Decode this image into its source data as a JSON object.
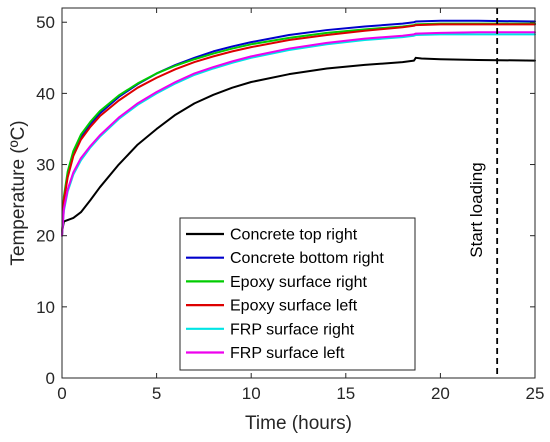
{
  "chart_data": {
    "type": "line",
    "xlabel": "Time (hours)",
    "ylabel": "Temperature (ºC)",
    "xlim": [
      0,
      25
    ],
    "ylim": [
      0,
      52
    ],
    "xticks": [
      0,
      5,
      10,
      15,
      20,
      25
    ],
    "yticks": [
      0,
      10,
      20,
      30,
      40,
      50
    ],
    "grid": false,
    "legend_position": "bottom-center",
    "annotation": {
      "text": "Start loading",
      "x": 23,
      "line_style": "dashed",
      "color": "#000000"
    },
    "series": [
      {
        "name": "Concrete top right",
        "color": "#000000",
        "x": [
          0,
          0.1,
          0.3,
          0.6,
          1,
          1.5,
          2,
          3,
          4,
          5,
          6,
          7,
          8,
          9,
          10,
          12,
          14,
          16,
          18,
          18.6,
          18.7,
          19,
          20,
          22,
          25
        ],
        "y": [
          20.5,
          22,
          22.2,
          22.5,
          23.3,
          25,
          26.8,
          30,
          32.8,
          35,
          37,
          38.6,
          39.8,
          40.8,
          41.6,
          42.7,
          43.5,
          44,
          44.4,
          44.6,
          45,
          44.9,
          44.8,
          44.7,
          44.6
        ]
      },
      {
        "name": "Concrete bottom right",
        "color": "#0000cc",
        "x": [
          0,
          0.1,
          0.3,
          0.6,
          1,
          1.5,
          2,
          3,
          4,
          5,
          6,
          7,
          8,
          9,
          10,
          12,
          14,
          16,
          18,
          18.6,
          18.7,
          20,
          22,
          25
        ],
        "y": [
          20,
          25,
          28.5,
          31.5,
          33.8,
          35.7,
          37.2,
          39.5,
          41.3,
          42.8,
          44,
          45,
          45.9,
          46.6,
          47.2,
          48.2,
          48.9,
          49.4,
          49.8,
          50,
          50.1,
          50.2,
          50.2,
          50.1
        ]
      },
      {
        "name": "Epoxy surface right",
        "color": "#00cc00",
        "x": [
          0,
          0.1,
          0.3,
          0.6,
          1,
          1.5,
          2,
          3,
          4,
          5,
          6,
          7,
          8,
          9,
          10,
          12,
          14,
          16,
          18,
          18.6,
          18.7,
          20,
          22,
          25
        ],
        "y": [
          20,
          25.5,
          29,
          31.9,
          34.2,
          36,
          37.5,
          39.7,
          41.4,
          42.8,
          43.9,
          44.8,
          45.6,
          46.3,
          46.9,
          47.8,
          48.5,
          49,
          49.4,
          49.6,
          49.7,
          49.8,
          49.8,
          49.8
        ]
      },
      {
        "name": "Epoxy surface left",
        "color": "#dd0000",
        "x": [
          0,
          0.1,
          0.3,
          0.6,
          1,
          1.5,
          2,
          3,
          4,
          5,
          6,
          7,
          8,
          9,
          10,
          12,
          14,
          16,
          18,
          18.6,
          18.7,
          20,
          22,
          25
        ],
        "y": [
          20,
          25,
          28.2,
          31.2,
          33.5,
          35.3,
          36.8,
          39,
          40.8,
          42.2,
          43.4,
          44.4,
          45.2,
          45.9,
          46.5,
          47.5,
          48.2,
          48.8,
          49.3,
          49.5,
          49.6,
          49.7,
          49.7,
          49.7
        ]
      },
      {
        "name": "FRP surface right",
        "color": "#00e5e5",
        "x": [
          0,
          0.1,
          0.3,
          0.6,
          1,
          1.5,
          2,
          3,
          4,
          5,
          6,
          7,
          8,
          9,
          10,
          12,
          14,
          16,
          18,
          18.6,
          18.7,
          20,
          22,
          25
        ],
        "y": [
          20,
          23.5,
          26.2,
          28.6,
          30.6,
          32.4,
          33.9,
          36.4,
          38.4,
          40,
          41.4,
          42.6,
          43.5,
          44.3,
          45,
          46.1,
          46.9,
          47.5,
          47.9,
          48.1,
          48.2,
          48.3,
          48.3,
          48.3
        ]
      },
      {
        "name": "FRP surface left",
        "color": "#ee00ee",
        "x": [
          0,
          0.1,
          0.3,
          0.6,
          1,
          1.5,
          2,
          3,
          4,
          5,
          6,
          7,
          8,
          9,
          10,
          12,
          14,
          16,
          18,
          18.6,
          18.7,
          20,
          22,
          25
        ],
        "y": [
          20,
          23.8,
          26.5,
          28.9,
          30.9,
          32.6,
          34.1,
          36.6,
          38.6,
          40.2,
          41.6,
          42.8,
          43.7,
          44.5,
          45.2,
          46.3,
          47.1,
          47.7,
          48.1,
          48.3,
          48.4,
          48.5,
          48.6,
          48.6
        ]
      }
    ]
  }
}
